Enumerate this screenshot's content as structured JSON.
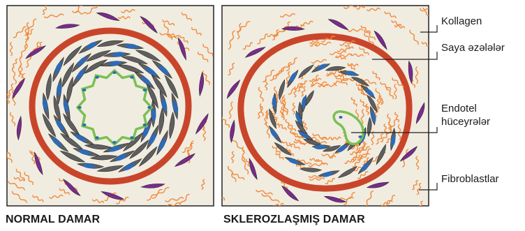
{
  "panels": {
    "normal": {
      "caption": "NORMAL DAMAR"
    },
    "sclerotic": {
      "caption": "SKLEROZLAŞMIŞ DAMAR"
    }
  },
  "legend": {
    "collagen": "Kollagen",
    "smooth_muscle": "Saya əzələlər",
    "endothelial_line1": "Endotel",
    "endothelial_line2": "hüceyrələr",
    "fibroblasts": "Fibroblastlar"
  },
  "colors": {
    "background": "#f1ece0",
    "collagen": "#f08a3c",
    "elastic_layer": "#c9452a",
    "smooth_muscle": "#5f5f5f",
    "smooth_muscle_nucleus": "#2f6bb5",
    "endothelium": "#79c153",
    "fibroblast": "#7b2a8e",
    "outline": "#222222"
  }
}
